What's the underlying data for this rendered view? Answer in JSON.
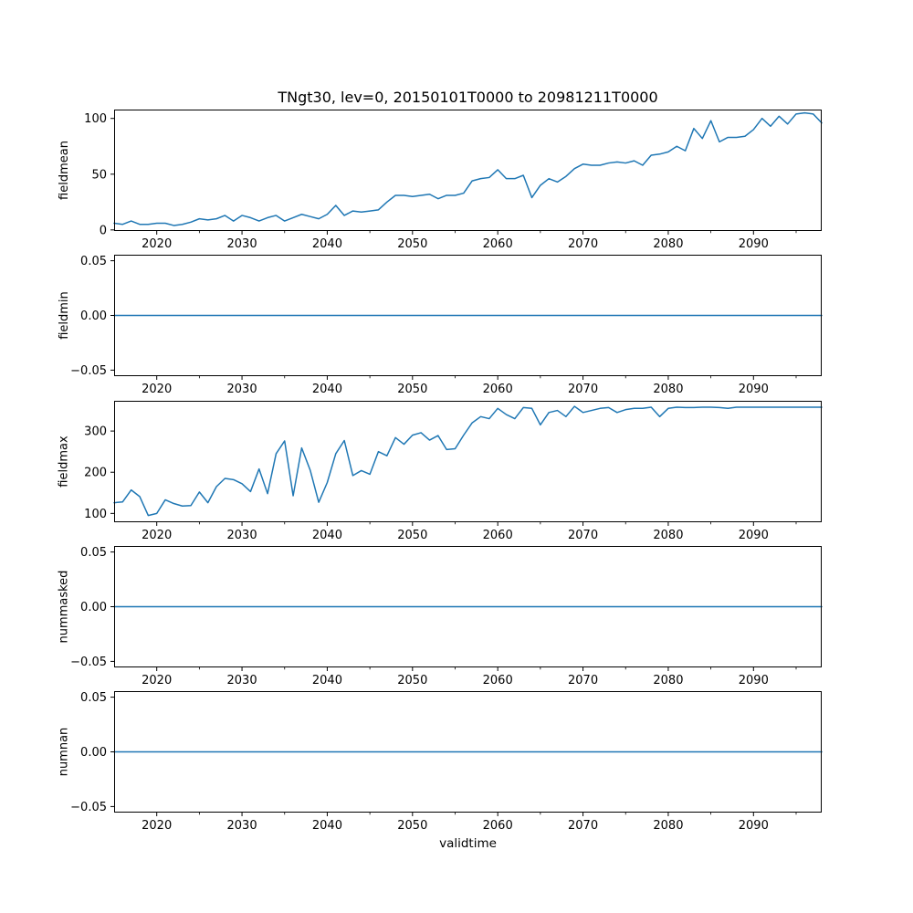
{
  "figure": {
    "title": "TNgt30, lev=0, 20150101T0000 to 20981211T0000",
    "background": "#ffffff",
    "line_color": "#1f77b4",
    "axis_color": "#000000"
  },
  "x_axis": {
    "label": "validtime",
    "limits": [
      2015,
      2098
    ],
    "major_ticks": [
      2020,
      2030,
      2040,
      2050,
      2060,
      2070,
      2080,
      2090
    ],
    "major_tick_labels": [
      "2020",
      "2030",
      "2040",
      "2050",
      "2060",
      "2070",
      "2080",
      "2090"
    ],
    "minor_ticks": [
      2025,
      2035,
      2045,
      2055,
      2065,
      2075,
      2085,
      2095
    ]
  },
  "chart_data": [
    {
      "type": "line",
      "name": "fieldmean",
      "ylabel": "fieldmean",
      "x_start": 2015,
      "x_step": 1,
      "ylim": [
        -0.95,
        107.95
      ],
      "ytick_values": [
        0,
        50,
        100
      ],
      "ytick_labels": [
        "0",
        "50",
        "100"
      ],
      "grid": false,
      "values": [
        6,
        5,
        8,
        5,
        5,
        6,
        6,
        4,
        5,
        7,
        10,
        9,
        10,
        13,
        8,
        13,
        11,
        8,
        11,
        13,
        8,
        11,
        14,
        12,
        10,
        14,
        22,
        13,
        17,
        16,
        17,
        18,
        25,
        31,
        31,
        30,
        31,
        32,
        28,
        31,
        31,
        33,
        44,
        46,
        47,
        54,
        46,
        46,
        49,
        29,
        40,
        46,
        43,
        48,
        55,
        59,
        58,
        58,
        60,
        61,
        60,
        62,
        58,
        67,
        68,
        70,
        75,
        71,
        91,
        82,
        98,
        79,
        83,
        83,
        84,
        90,
        100,
        93,
        102,
        95,
        104,
        105,
        104,
        96
      ]
    },
    {
      "type": "line",
      "name": "fieldmin",
      "ylabel": "fieldmin",
      "x_start": 2015,
      "x_step": 1,
      "ylim": [
        -0.0555,
        0.0555
      ],
      "ytick_values": [
        -0.05,
        0,
        0.05
      ],
      "ytick_labels": [
        "−0.05",
        "0.00",
        "0.05"
      ],
      "grid": false,
      "constant": 0,
      "n_points": 84
    },
    {
      "type": "line",
      "name": "fieldmax",
      "ylabel": "fieldmax",
      "x_start": 2015,
      "x_step": 1,
      "ylim": [
        78.6,
        373.4
      ],
      "ytick_values": [
        100,
        200,
        300
      ],
      "ytick_labels": [
        "100",
        "200",
        "300"
      ],
      "grid": false,
      "values": [
        126,
        128,
        157,
        141,
        95,
        100,
        133,
        124,
        118,
        119,
        152,
        126,
        165,
        185,
        182,
        172,
        153,
        208,
        148,
        245,
        276,
        143,
        259,
        205,
        127,
        175,
        245,
        277,
        192,
        204,
        195,
        250,
        240,
        284,
        268,
        290,
        296,
        278,
        289,
        255,
        257,
        290,
        320,
        335,
        330,
        355,
        340,
        330,
        357,
        355,
        315,
        345,
        350,
        335,
        360,
        345,
        350,
        355,
        357,
        345,
        352,
        355,
        355,
        358,
        335,
        355,
        358,
        357,
        357,
        358,
        358,
        357,
        355,
        358,
        358,
        358,
        358,
        358,
        358,
        358,
        358,
        358,
        358,
        358
      ]
    },
    {
      "type": "line",
      "name": "nummasked",
      "ylabel": "nummasked",
      "x_start": 2015,
      "x_step": 1,
      "ylim": [
        -0.0555,
        0.0555
      ],
      "ytick_values": [
        -0.05,
        0,
        0.05
      ],
      "ytick_labels": [
        "−0.05",
        "0.00",
        "0.05"
      ],
      "grid": false,
      "constant": 0,
      "n_points": 84
    },
    {
      "type": "line",
      "name": "numnan",
      "ylabel": "numnan",
      "x_start": 2015,
      "x_step": 1,
      "ylim": [
        -0.0555,
        0.0555
      ],
      "ytick_values": [
        -0.05,
        0,
        0.05
      ],
      "ytick_labels": [
        "−0.05",
        "0.00",
        "0.05"
      ],
      "grid": false,
      "constant": 0,
      "n_points": 84
    }
  ]
}
